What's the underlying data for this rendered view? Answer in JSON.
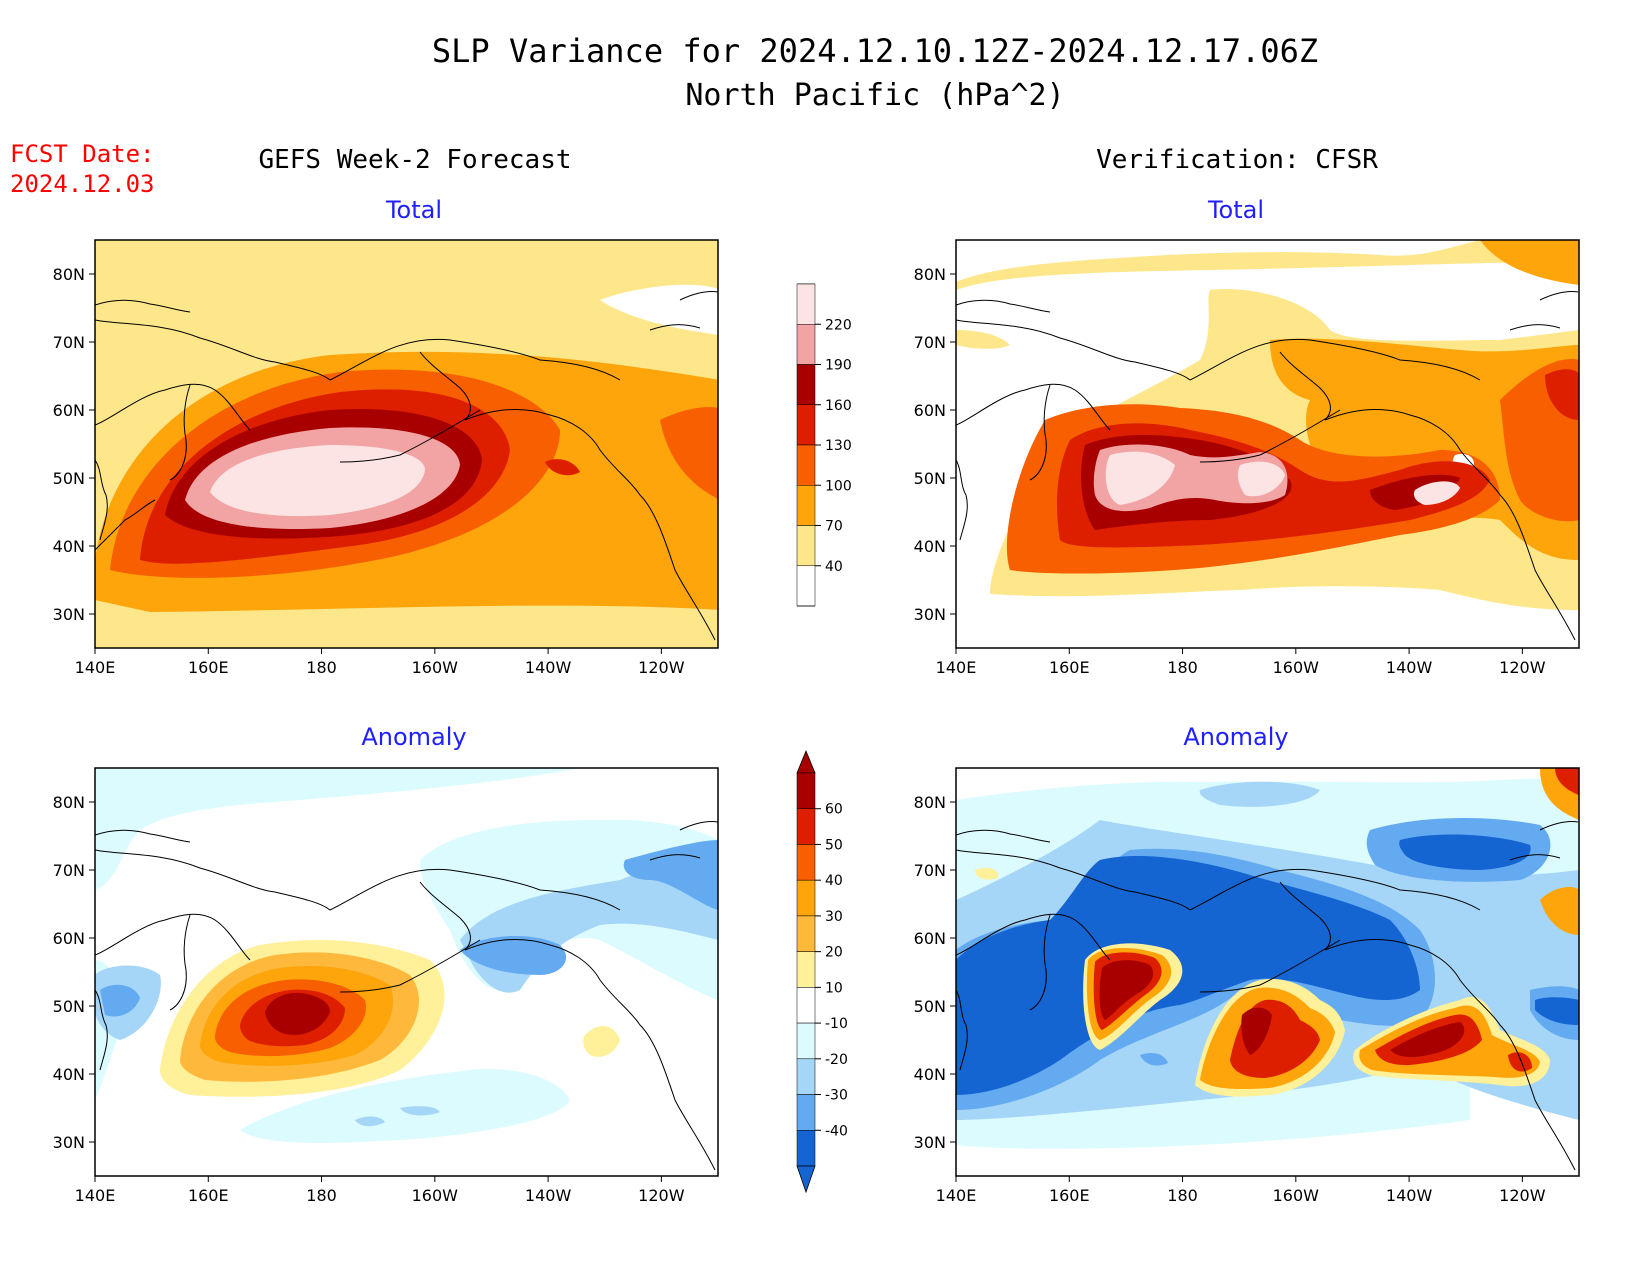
{
  "header": {
    "title_line1": "SLP Variance for 2024.12.10.12Z-2024.12.17.06Z",
    "title_line2": "North Pacific (hPa^2)",
    "fcst_label": "FCST Date:",
    "fcst_date": "2024.12.03",
    "left_column_title": "GEFS Week-2 Forecast",
    "right_column_title": "Verification: CFSR"
  },
  "panels": [
    {
      "id": "fcst-total",
      "subtitle": "Total"
    },
    {
      "id": "verif-total",
      "subtitle": "Total"
    },
    {
      "id": "fcst-anomaly",
      "subtitle": "Anomaly"
    },
    {
      "id": "verif-anomaly",
      "subtitle": "Anomaly"
    }
  ],
  "map": {
    "lon_ticks": [
      "140E",
      "160E",
      "180",
      "160W",
      "140W",
      "120W"
    ],
    "lat_ticks": [
      "80N",
      "70N",
      "60N",
      "50N",
      "40N",
      "30N"
    ],
    "lon_range": [
      140,
      250
    ],
    "lat_range": [
      25,
      85
    ]
  },
  "colorbars": {
    "total": {
      "labels": [
        "220",
        "190",
        "160",
        "130",
        "100",
        "70",
        "40"
      ],
      "colors": [
        "#fde4e4",
        "#f2a3a3",
        "#a80000",
        "#dd1f00",
        "#f75f00",
        "#fda50a",
        "#fde78a",
        "#ffffff"
      ]
    },
    "anomaly": {
      "labels": [
        "60",
        "50",
        "40",
        "30",
        "20",
        "10",
        "-10",
        "-20",
        "-30",
        "-40"
      ],
      "colors": [
        "#a80000",
        "#dd1f00",
        "#f75f00",
        "#fda50a",
        "#feb83c",
        "#fff09a",
        "#ffffff",
        "#dcfbff",
        "#a5d6f7",
        "#63aaf0",
        "#1464d2"
      ]
    }
  },
  "colors": {
    "title_text": "#000000",
    "fcst_date_text": "#ff0000",
    "subtitle_text": "#2020ff"
  }
}
